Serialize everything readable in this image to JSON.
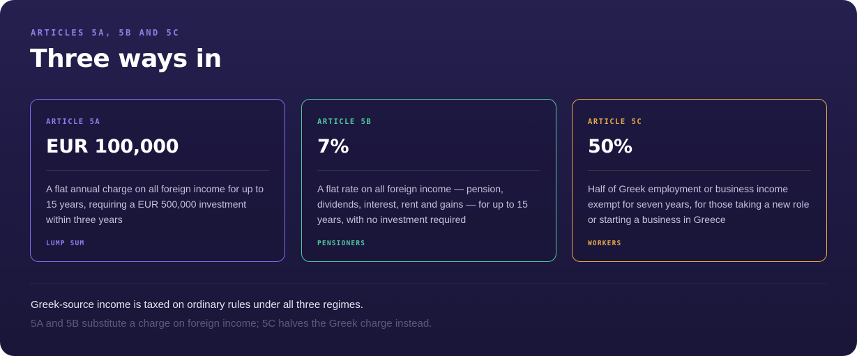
{
  "header": {
    "eyebrow": "ARTICLES 5A, 5B AND 5C",
    "title": "Three ways in"
  },
  "cards": [
    {
      "label": "ARTICLE 5A",
      "value": "EUR 100,000",
      "description": "A flat annual charge on all foreign income for up to 15 years, requiring a EUR 500,000 investment within three years",
      "tag": "LUMP SUM",
      "accent": "#7b6ef0"
    },
    {
      "label": "ARTICLE 5B",
      "value": "7%",
      "description": "A flat rate on all foreign income — pension, dividends, interest, rent and gains — for up to 15 years, with no investment required",
      "tag": "PENSIONERS",
      "accent": "#4fc79f"
    },
    {
      "label": "ARTICLE 5C",
      "value": "50%",
      "description": "Half of Greek employment or business income exempt for seven years, for those taking a new role or starting a business in Greece",
      "tag": "WORKERS",
      "accent": "#e8a84a"
    }
  ],
  "footer": {
    "primary": "Greek-source income is taxed on ordinary rules under all three regimes.",
    "secondary": "5A and 5B substitute a charge on foreign income; 5C halves the Greek charge instead."
  },
  "colors": {
    "background": "#211c4a",
    "title": "#ffffff",
    "eyebrow": "#8b7fe6"
  }
}
